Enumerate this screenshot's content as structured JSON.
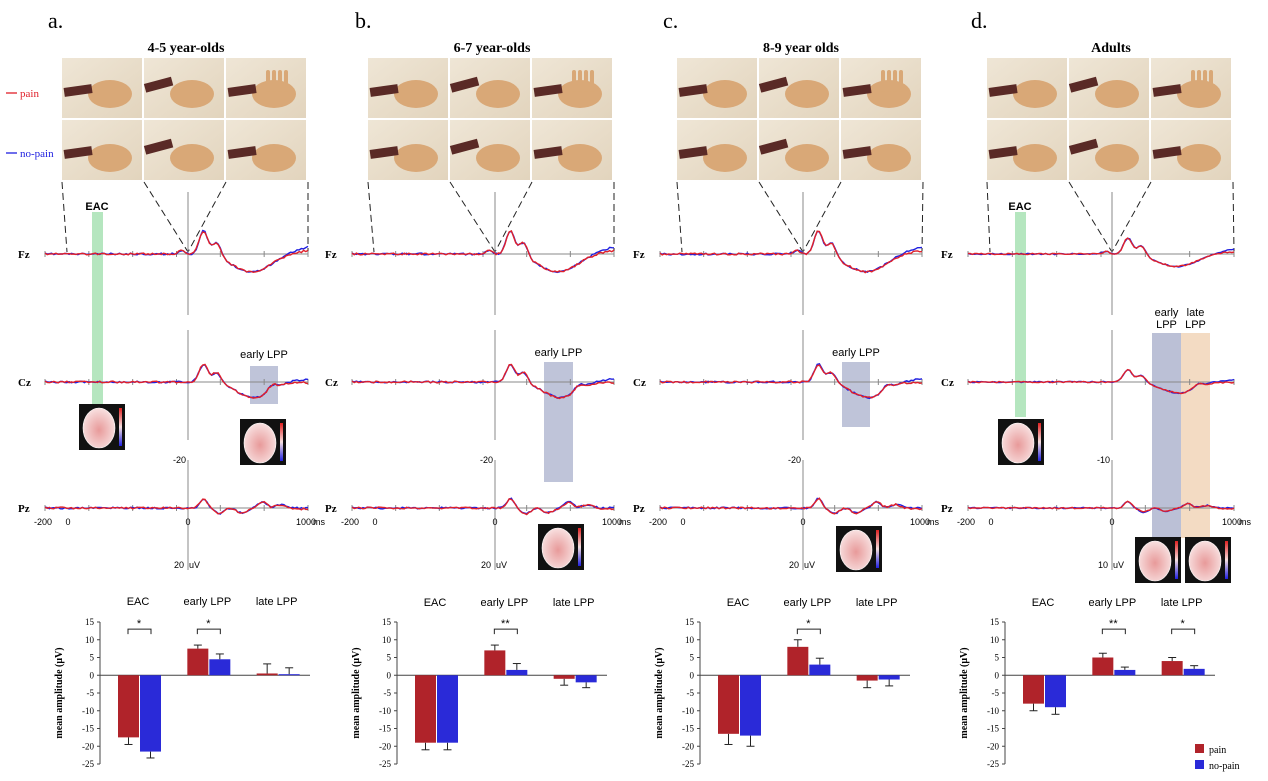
{
  "figure": {
    "legend_top": {
      "pain": "pain",
      "nopain": "no-pain"
    },
    "legend_bottom": {
      "pain": "pain",
      "nopain": "no-pain"
    },
    "colors": {
      "pain": "#e0202a",
      "nopain": "#2020e0",
      "pain_bar": "#b0232a",
      "nopain_bar": "#2a2ad8",
      "eac_band": "#a8e2b4",
      "early_band": "#aab0cc",
      "late_band": "#f0d2b4"
    },
    "electrodes": [
      "Fz",
      "Cz",
      "Pz"
    ],
    "time_ticks": [
      "-200",
      "0",
      "1000 ms"
    ],
    "ms_unit": "ms",
    "uv_unit": "uV"
  },
  "panels": [
    {
      "letter": "a.",
      "title": "4-5 year-olds",
      "eac_label": "EAC",
      "lpp_label": "early LPP",
      "late_label": "",
      "scale_top": "-20",
      "scale_bottom": "20",
      "x_start": "-200",
      "x_zero": "0",
      "x_end": "1000"
    },
    {
      "letter": "b.",
      "title": "6-7 year-olds",
      "eac_label": "",
      "lpp_label": "early LPP",
      "late_label": "",
      "scale_top": "-20",
      "scale_bottom": "20",
      "x_start": "-200",
      "x_zero": "0",
      "x_end": "1000"
    },
    {
      "letter": "c.",
      "title": "8-9 year olds",
      "eac_label": "",
      "lpp_label": "early LPP",
      "late_label": "",
      "scale_top": "-20",
      "scale_bottom": "20",
      "x_start": "-200",
      "x_zero": "0",
      "x_end": "1000"
    },
    {
      "letter": "d.",
      "title": "Adults",
      "eac_label": "EAC",
      "lpp_label": "early LPP",
      "late_label": "late LPP",
      "scale_top": "-10",
      "scale_bottom": "10",
      "x_start": "-200",
      "x_zero": "0",
      "x_end": "1000"
    }
  ],
  "chart_data": [
    {
      "type": "bar",
      "panel": "a.",
      "categories": [
        "EAC",
        "early LPP",
        "late LPP"
      ],
      "ylabel": "mean amplitude (μV)",
      "ylim": [
        -25,
        15
      ],
      "yticks": [
        "15",
        "10",
        "5",
        "0",
        "-5",
        "-10",
        "-15",
        "-20",
        "-25"
      ],
      "series": [
        {
          "name": "pain",
          "values": [
            -17.5,
            7.5,
            0.5
          ],
          "errors": [
            2.0,
            1.0,
            2.7
          ]
        },
        {
          "name": "no-pain",
          "values": [
            -21.5,
            4.5,
            0.3
          ],
          "errors": [
            1.8,
            1.5,
            1.8
          ]
        }
      ],
      "significance": [
        {
          "category": 0,
          "label": "*"
        },
        {
          "category": 1,
          "label": "*"
        }
      ]
    },
    {
      "type": "bar",
      "panel": "b.",
      "categories": [
        "EAC",
        "early LPP",
        "late LPP"
      ],
      "ylabel": "mean amplitude (μV)",
      "ylim": [
        -25,
        15
      ],
      "yticks": [
        "15",
        "10",
        "5",
        "0",
        "-5",
        "-10",
        "-15",
        "-20",
        "-25"
      ],
      "series": [
        {
          "name": "pain",
          "values": [
            -19,
            7,
            -1
          ],
          "errors": [
            2.0,
            1.5,
            1.8
          ]
        },
        {
          "name": "no-pain",
          "values": [
            -19,
            1.5,
            -2
          ],
          "errors": [
            2.0,
            1.8,
            1.5
          ]
        }
      ],
      "significance": [
        {
          "category": 1,
          "label": "**"
        }
      ]
    },
    {
      "type": "bar",
      "panel": "c.",
      "categories": [
        "EAC",
        "early LPP",
        "late LPP"
      ],
      "ylabel": "mean amplitude (μV)",
      "ylim": [
        -25,
        15
      ],
      "yticks": [
        "15",
        "10",
        "5",
        "0",
        "-5",
        "-10",
        "-15",
        "-20",
        "-25"
      ],
      "series": [
        {
          "name": "pain",
          "values": [
            -16.5,
            8,
            -1.5
          ],
          "errors": [
            3.0,
            2.0,
            2.0
          ]
        },
        {
          "name": "no-pain",
          "values": [
            -17,
            3,
            -1.2
          ],
          "errors": [
            3.0,
            1.8,
            1.8
          ]
        }
      ],
      "significance": [
        {
          "category": 1,
          "label": "*"
        }
      ]
    },
    {
      "type": "bar",
      "panel": "d.",
      "categories": [
        "EAC",
        "early LPP",
        "late LPP"
      ],
      "ylabel": "mean amplitude (μV)",
      "ylim": [
        -25,
        15
      ],
      "yticks": [
        "15",
        "10",
        "5",
        "0",
        "-5",
        "-10",
        "-15",
        "-20",
        "-25"
      ],
      "series": [
        {
          "name": "pain",
          "values": [
            -8,
            5,
            4
          ],
          "errors": [
            2.0,
            1.2,
            1.0
          ]
        },
        {
          "name": "no-pain",
          "values": [
            -9,
            1.5,
            1.8
          ],
          "errors": [
            2.0,
            0.8,
            0.9
          ]
        }
      ],
      "significance": [
        {
          "category": 1,
          "label": "**"
        },
        {
          "category": 2,
          "label": "*"
        }
      ]
    }
  ]
}
